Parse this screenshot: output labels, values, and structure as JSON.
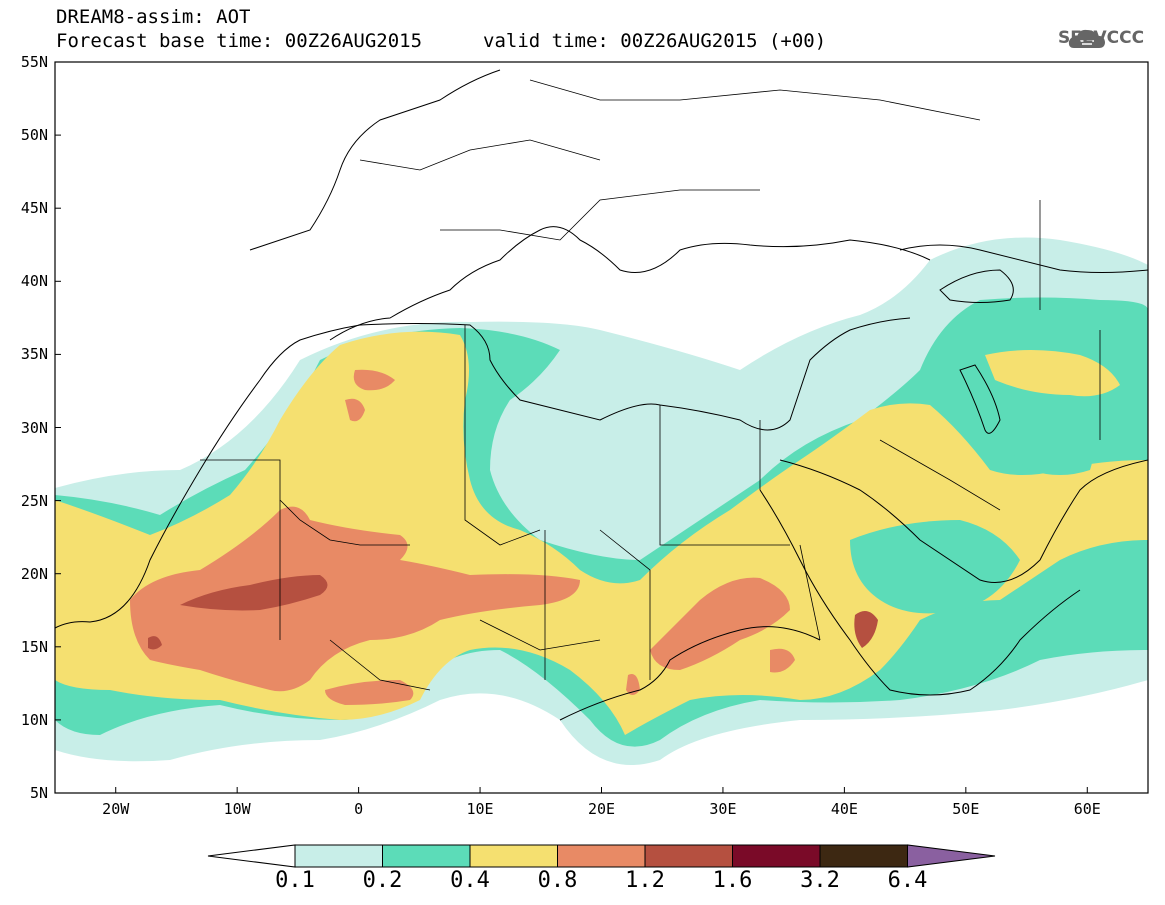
{
  "header": {
    "line1": "DREAM8-assim: AOT",
    "line2": "Forecast base time: 00Z26AUG2015",
    "valid": "valid time: 00Z26AUG2015 (+00)"
  },
  "logo": {
    "text": "SEEVCCC",
    "icon": "cloud-icon"
  },
  "axes": {
    "lat_labels": [
      "55N",
      "50N",
      "45N",
      "40N",
      "35N",
      "30N",
      "25N",
      "20N",
      "15N",
      "10N",
      "5N"
    ],
    "lon_labels": [
      "20W",
      "10W",
      "0",
      "10E",
      "20E",
      "30E",
      "40E",
      "50E",
      "60E"
    ],
    "lat_range": [
      5,
      55
    ],
    "lon_range": [
      -25,
      65
    ]
  },
  "colorbar": {
    "labels": [
      "0.1",
      "0.2",
      "0.4",
      "0.8",
      "1.2",
      "1.6",
      "3.2",
      "6.4"
    ],
    "colors": [
      "#ffffff",
      "#c8eee8",
      "#5cdcb8",
      "#f5e070",
      "#e88a65",
      "#b55040",
      "#7a0a28",
      "#3d2812",
      "#8a60a0"
    ]
  },
  "map_data": {
    "field": "AOT",
    "region": "North Africa, Mediterranean, Middle East",
    "colors": {
      "c01": "#c8eee8",
      "c02": "#5cdcb8",
      "c04": "#f5e070",
      "c08": "#e88a65",
      "c12": "#b55040",
      "c16": "#7a0a28"
    }
  }
}
